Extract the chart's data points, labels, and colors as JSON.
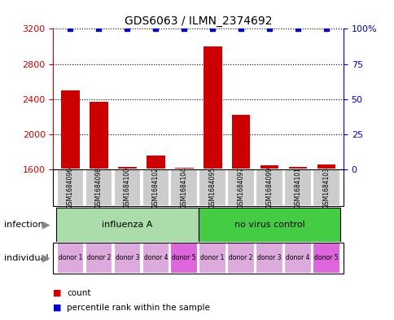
{
  "title": "GDS6063 / ILMN_2374692",
  "samples": [
    "GSM1684096",
    "GSM1684098",
    "GSM1684100",
    "GSM1684102",
    "GSM1684104",
    "GSM1684095",
    "GSM1684097",
    "GSM1684099",
    "GSM1684101",
    "GSM1684103"
  ],
  "counts": [
    2500,
    2370,
    1630,
    1760,
    1620,
    3000,
    2220,
    1650,
    1630,
    1660
  ],
  "percentile_ranks": [
    100,
    100,
    100,
    100,
    100,
    100,
    100,
    100,
    100,
    100
  ],
  "ylim_left": [
    1600,
    3200
  ],
  "ylim_right": [
    0,
    100
  ],
  "yticks_left": [
    1600,
    2000,
    2400,
    2800,
    3200
  ],
  "yticks_right": [
    0,
    25,
    50,
    75,
    100
  ],
  "bar_color": "#cc0000",
  "dot_color": "#0000cc",
  "sample_box_color": "#cccccc",
  "infection_groups": [
    {
      "label": "influenza A",
      "start": 0,
      "end": 5,
      "color": "#aaddaa"
    },
    {
      "label": "no virus control",
      "start": 5,
      "end": 10,
      "color": "#44cc44"
    }
  ],
  "individual_labels": [
    "donor 1",
    "donor 2",
    "donor 3",
    "donor 4",
    "donor 5",
    "donor 1",
    "donor 2",
    "donor 3",
    "donor 4",
    "donor 5"
  ],
  "individual_colors_light": "#ddaadd",
  "individual_color_dark": "#dd66dd",
  "individual_dark_indices": [
    4,
    9
  ],
  "infection_label": "infection",
  "individual_label": "individual",
  "legend_count_label": "count",
  "legend_percentile_label": "percentile rank within the sample",
  "background_color": "#ffffff",
  "grid_color": "#000000",
  "label_color_left": "#cc0000",
  "label_color_right": "#0000cc",
  "border_color": "#000000"
}
